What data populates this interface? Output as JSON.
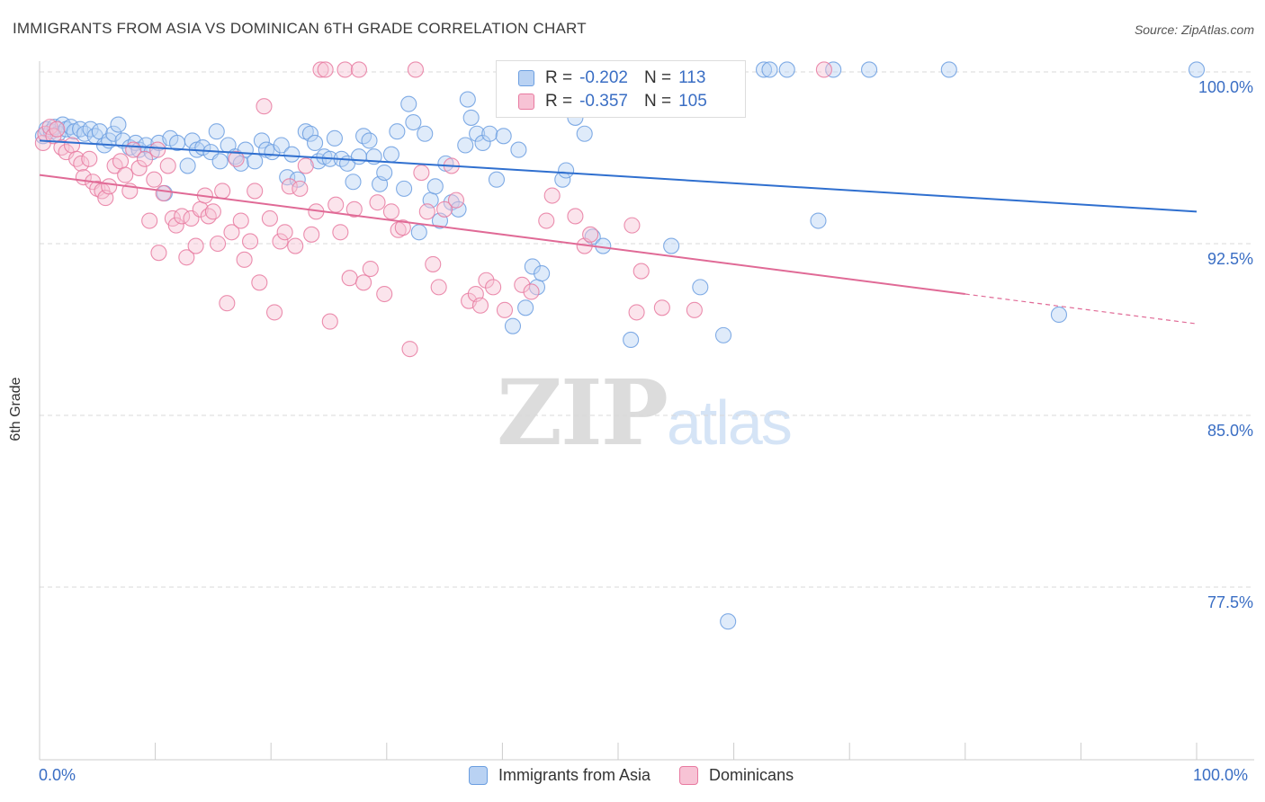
{
  "title": "IMMIGRANTS FROM ASIA VS DOMINICAN 6TH GRADE CORRELATION CHART",
  "source": "Source: ZipAtlas.com",
  "watermark": {
    "zip": "ZIP",
    "atlas": "atlas"
  },
  "colors": {
    "blue": "#6b9ee0",
    "blue_fill": "#b9d2f3",
    "pink": "#e87aa0",
    "pink_fill": "#f7c3d5",
    "accent_text": "#3a6ec4",
    "blue_line": "#2f6fcf",
    "pink_line": "#e06a96"
  },
  "legend_top": {
    "rows": [
      {
        "r_label": "R = ",
        "r_value": "-0.202",
        "n_label": "N = ",
        "n_value": "113"
      },
      {
        "r_label": "R = ",
        "r_value": "-0.357",
        "n_label": "N = ",
        "n_value": "105"
      }
    ]
  },
  "legend_bottom": [
    {
      "label": "Immigrants from Asia"
    },
    {
      "label": "Dominicans"
    }
  ],
  "chart_data": {
    "type": "scatter",
    "title": "IMMIGRANTS FROM ASIA VS DOMINICAN 6TH GRADE CORRELATION CHART",
    "xlabel": "",
    "ylabel": "6th Grade",
    "xlim": [
      0,
      100
    ],
    "ylim": [
      70.0,
      100.7
    ],
    "x_tick_labels": [
      "0.0%",
      "100.0%"
    ],
    "y_ticks": [
      100.0,
      92.5,
      85.0,
      77.5
    ],
    "y_tick_labels": [
      "100.0%",
      "92.5%",
      "85.0%",
      "77.5%"
    ],
    "grid": true,
    "legend_position": "top-center",
    "series": [
      {
        "name": "Immigrants from Asia",
        "color": "blue",
        "trend": {
          "x": [
            0,
            100
          ],
          "y": [
            97.0,
            93.9
          ],
          "dashed_from": null
        },
        "points": [
          [
            0.3,
            97.2
          ],
          [
            0.6,
            97.5
          ],
          [
            1.0,
            97.4
          ],
          [
            1.3,
            97.6
          ],
          [
            1.6,
            97.3
          ],
          [
            2.0,
            97.7
          ],
          [
            2.3,
            97.5
          ],
          [
            2.7,
            97.6
          ],
          [
            3.0,
            97.4
          ],
          [
            3.5,
            97.5
          ],
          [
            3.9,
            97.3
          ],
          [
            4.4,
            97.5
          ],
          [
            4.8,
            97.2
          ],
          [
            5.2,
            97.4
          ],
          [
            5.6,
            96.8
          ],
          [
            6.0,
            97.0
          ],
          [
            6.4,
            97.3
          ],
          [
            6.8,
            97.7
          ],
          [
            7.2,
            97.0
          ],
          [
            7.8,
            96.7
          ],
          [
            8.3,
            96.9
          ],
          [
            8.6,
            96.6
          ],
          [
            9.2,
            96.8
          ],
          [
            9.7,
            96.5
          ],
          [
            10.3,
            96.9
          ],
          [
            10.8,
            94.7
          ],
          [
            11.3,
            97.1
          ],
          [
            11.9,
            96.9
          ],
          [
            12.8,
            95.9
          ],
          [
            13.2,
            97.0
          ],
          [
            13.6,
            96.6
          ],
          [
            14.1,
            96.7
          ],
          [
            14.8,
            96.5
          ],
          [
            15.3,
            97.4
          ],
          [
            15.6,
            96.1
          ],
          [
            16.3,
            96.8
          ],
          [
            16.9,
            96.3
          ],
          [
            17.4,
            96.0
          ],
          [
            17.8,
            96.6
          ],
          [
            18.6,
            96.1
          ],
          [
            19.2,
            97.0
          ],
          [
            19.6,
            96.6
          ],
          [
            20.1,
            96.5
          ],
          [
            20.9,
            96.8
          ],
          [
            21.4,
            95.4
          ],
          [
            21.8,
            96.4
          ],
          [
            22.3,
            95.3
          ],
          [
            23.0,
            97.4
          ],
          [
            23.4,
            97.3
          ],
          [
            23.8,
            96.9
          ],
          [
            24.1,
            96.1
          ],
          [
            24.6,
            96.3
          ],
          [
            25.1,
            96.2
          ],
          [
            25.5,
            97.1
          ],
          [
            26.1,
            96.2
          ],
          [
            26.6,
            96.0
          ],
          [
            27.1,
            95.2
          ],
          [
            27.6,
            96.3
          ],
          [
            28.0,
            97.2
          ],
          [
            28.5,
            97.0
          ],
          [
            28.9,
            96.3
          ],
          [
            29.4,
            95.1
          ],
          [
            29.8,
            95.6
          ],
          [
            30.4,
            96.4
          ],
          [
            30.9,
            97.4
          ],
          [
            31.5,
            94.9
          ],
          [
            31.9,
            98.6
          ],
          [
            32.3,
            97.8
          ],
          [
            32.8,
            93.0
          ],
          [
            33.3,
            97.3
          ],
          [
            33.8,
            94.4
          ],
          [
            34.2,
            95.0
          ],
          [
            34.6,
            93.5
          ],
          [
            35.1,
            96.0
          ],
          [
            35.6,
            94.3
          ],
          [
            36.2,
            94.0
          ],
          [
            36.8,
            96.8
          ],
          [
            37.3,
            98.0
          ],
          [
            37.8,
            97.3
          ],
          [
            38.3,
            96.9
          ],
          [
            38.9,
            97.3
          ],
          [
            39.5,
            95.3
          ],
          [
            40.1,
            97.2
          ],
          [
            40.9,
            88.9
          ],
          [
            41.4,
            96.6
          ],
          [
            42.0,
            89.7
          ],
          [
            42.6,
            91.5
          ],
          [
            43.0,
            90.6
          ],
          [
            43.4,
            91.2
          ],
          [
            44.1,
            99.0
          ],
          [
            45.2,
            95.3
          ],
          [
            45.5,
            95.7
          ],
          [
            46.3,
            98.0
          ],
          [
            47.1,
            97.3
          ],
          [
            47.8,
            92.8
          ],
          [
            48.7,
            92.4
          ],
          [
            51.1,
            88.3
          ],
          [
            52.3,
            99.2
          ],
          [
            53.0,
            100.1
          ],
          [
            54.6,
            92.4
          ],
          [
            57.1,
            90.6
          ],
          [
            59.1,
            88.5
          ],
          [
            62.6,
            100.1
          ],
          [
            63.1,
            100.1
          ],
          [
            64.6,
            100.1
          ],
          [
            67.3,
            93.5
          ],
          [
            68.6,
            100.1
          ],
          [
            71.7,
            100.1
          ],
          [
            78.6,
            100.1
          ],
          [
            88.1,
            89.4
          ],
          [
            100.0,
            100.1
          ],
          [
            59.5,
            76.0
          ],
          [
            37.0,
            98.8
          ]
        ]
      },
      {
        "name": "Dominicans",
        "color": "pink",
        "trend": {
          "x": [
            0,
            80,
            100
          ],
          "y": [
            95.5,
            90.3,
            89.0
          ],
          "dashed_from": 80
        },
        "points": [
          [
            0.3,
            96.9
          ],
          [
            0.5,
            97.3
          ],
          [
            0.9,
            97.6
          ],
          [
            1.2,
            97.2
          ],
          [
            1.5,
            97.5
          ],
          [
            1.9,
            96.7
          ],
          [
            2.3,
            96.5
          ],
          [
            2.8,
            96.8
          ],
          [
            3.2,
            96.2
          ],
          [
            3.6,
            96.0
          ],
          [
            3.8,
            95.4
          ],
          [
            4.3,
            96.2
          ],
          [
            4.6,
            95.2
          ],
          [
            5.0,
            94.9
          ],
          [
            5.4,
            94.8
          ],
          [
            5.7,
            94.5
          ],
          [
            6.0,
            95.0
          ],
          [
            6.5,
            95.9
          ],
          [
            7.0,
            96.1
          ],
          [
            7.4,
            95.5
          ],
          [
            7.8,
            94.8
          ],
          [
            8.1,
            96.6
          ],
          [
            8.6,
            95.8
          ],
          [
            9.1,
            96.2
          ],
          [
            9.5,
            93.5
          ],
          [
            9.9,
            95.3
          ],
          [
            10.3,
            92.1
          ],
          [
            10.7,
            94.7
          ],
          [
            11.1,
            95.9
          ],
          [
            11.5,
            93.6
          ],
          [
            11.8,
            93.3
          ],
          [
            12.3,
            93.7
          ],
          [
            12.7,
            91.9
          ],
          [
            13.1,
            93.6
          ],
          [
            13.5,
            92.4
          ],
          [
            13.9,
            94.0
          ],
          [
            14.3,
            94.6
          ],
          [
            14.6,
            93.7
          ],
          [
            15.0,
            93.9
          ],
          [
            15.4,
            92.5
          ],
          [
            15.8,
            94.8
          ],
          [
            16.2,
            89.9
          ],
          [
            16.6,
            93.0
          ],
          [
            17.0,
            96.2
          ],
          [
            17.4,
            93.5
          ],
          [
            17.7,
            91.8
          ],
          [
            18.2,
            92.6
          ],
          [
            18.6,
            94.8
          ],
          [
            19.0,
            90.8
          ],
          [
            19.4,
            98.5
          ],
          [
            19.9,
            93.6
          ],
          [
            20.3,
            89.5
          ],
          [
            20.8,
            92.6
          ],
          [
            21.2,
            93.0
          ],
          [
            21.6,
            95.0
          ],
          [
            22.1,
            92.4
          ],
          [
            22.5,
            94.9
          ],
          [
            23.0,
            95.9
          ],
          [
            23.5,
            92.9
          ],
          [
            23.9,
            93.9
          ],
          [
            24.3,
            100.1
          ],
          [
            24.7,
            100.1
          ],
          [
            25.1,
            89.1
          ],
          [
            25.6,
            94.2
          ],
          [
            26.0,
            93.0
          ],
          [
            26.4,
            100.1
          ],
          [
            26.8,
            91.0
          ],
          [
            27.2,
            94.0
          ],
          [
            27.6,
            100.1
          ],
          [
            28.0,
            90.8
          ],
          [
            28.6,
            91.4
          ],
          [
            29.2,
            94.3
          ],
          [
            29.8,
            90.3
          ],
          [
            30.4,
            93.9
          ],
          [
            31.0,
            93.1
          ],
          [
            31.4,
            93.2
          ],
          [
            32.0,
            87.9
          ],
          [
            32.5,
            100.1
          ],
          [
            33.0,
            95.6
          ],
          [
            33.5,
            93.9
          ],
          [
            34.0,
            91.6
          ],
          [
            34.5,
            90.6
          ],
          [
            35.0,
            94.0
          ],
          [
            35.6,
            95.9
          ],
          [
            36.0,
            94.4
          ],
          [
            37.1,
            90.0
          ],
          [
            37.7,
            90.3
          ],
          [
            38.1,
            89.8
          ],
          [
            38.6,
            90.9
          ],
          [
            39.2,
            90.6
          ],
          [
            40.2,
            89.6
          ],
          [
            41.7,
            90.7
          ],
          [
            42.5,
            90.4
          ],
          [
            43.8,
            93.5
          ],
          [
            44.3,
            94.6
          ],
          [
            46.3,
            93.7
          ],
          [
            47.1,
            92.4
          ],
          [
            47.6,
            92.9
          ],
          [
            51.2,
            93.3
          ],
          [
            51.6,
            89.5
          ],
          [
            52.0,
            91.3
          ],
          [
            53.8,
            89.7
          ],
          [
            56.6,
            89.6
          ],
          [
            67.8,
            100.1
          ],
          [
            10.2,
            96.6
          ]
        ]
      }
    ]
  }
}
